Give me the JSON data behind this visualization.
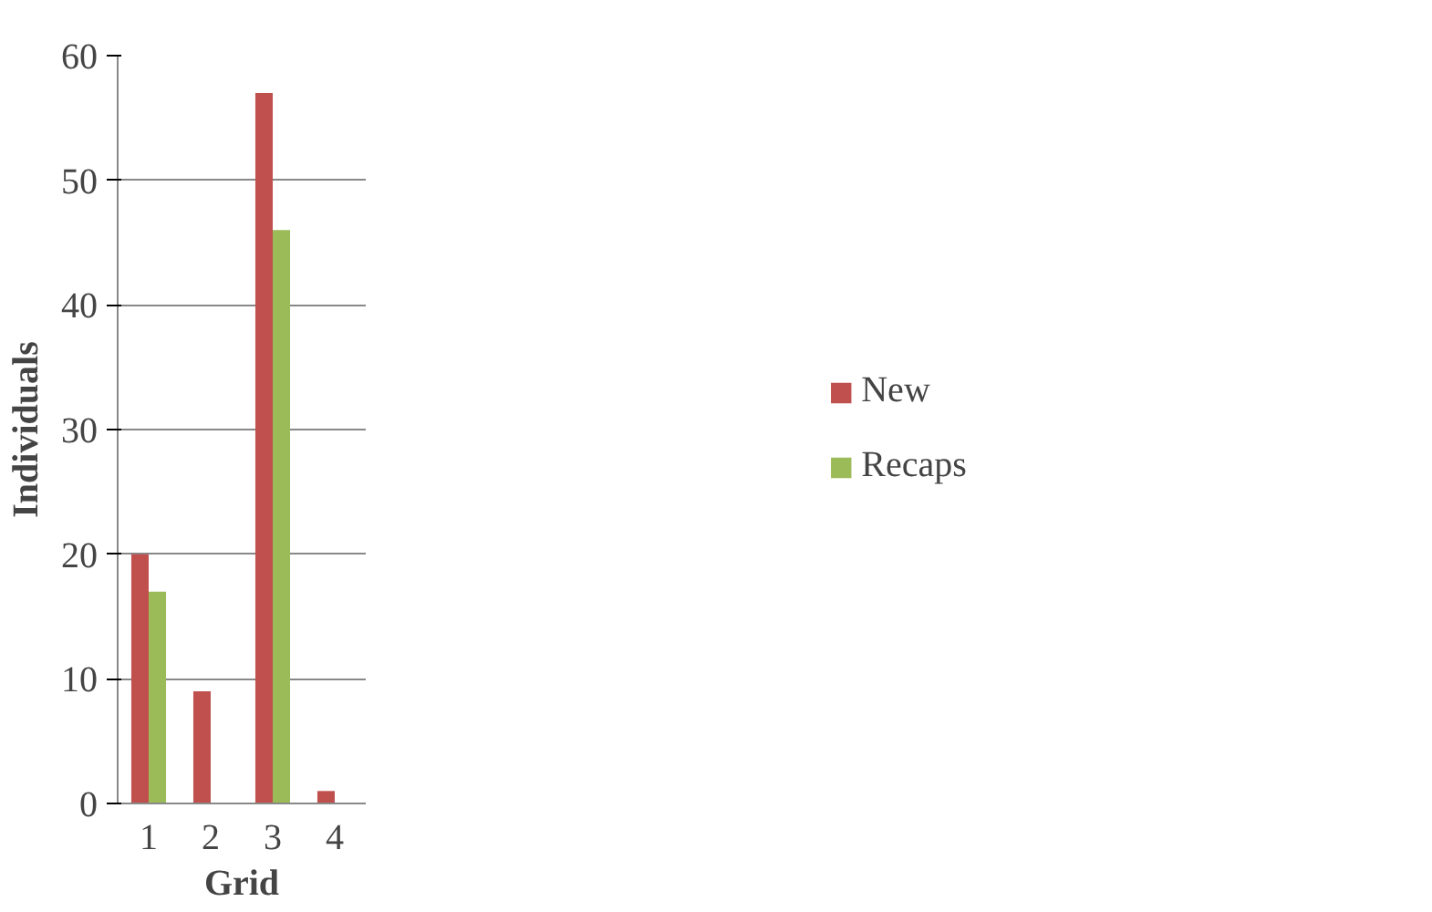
{
  "chart_data": {
    "type": "bar",
    "xlabel": "Grid",
    "ylabel": "Individuals",
    "categories": [
      "1",
      "2",
      "3",
      "4"
    ],
    "series": [
      {
        "name": "New",
        "color": "#c0504d",
        "values": [
          20,
          9,
          57,
          1
        ]
      },
      {
        "name": "Recaps",
        "color": "#9bbb59",
        "values": [
          17,
          0,
          46,
          0
        ]
      }
    ],
    "ylim": [
      0,
      60
    ],
    "yticks": [
      0,
      10,
      20,
      30,
      40,
      50,
      60
    ],
    "grid": "y",
    "legend": "right"
  }
}
